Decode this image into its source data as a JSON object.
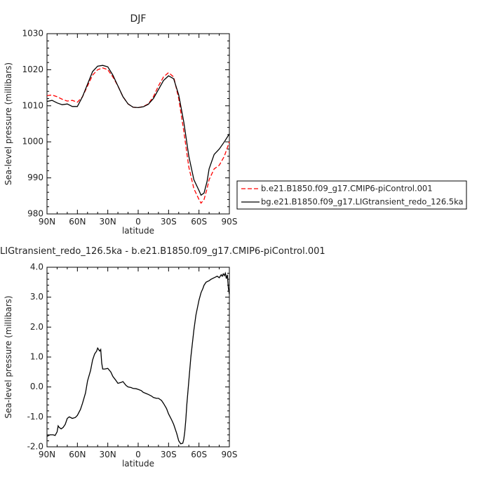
{
  "chart_data": [
    {
      "type": "line",
      "title": "DJF",
      "xlabel": "latitude",
      "ylabel": "Sea-level pressure (millibars)",
      "xlim": [
        90,
        -90
      ],
      "ylim": [
        980,
        1030
      ],
      "x_tick_values": [
        90,
        60,
        30,
        0,
        -30,
        -60,
        -90
      ],
      "x_tick_labels": [
        "90N",
        "60N",
        "30N",
        "0",
        "30S",
        "60S",
        "90S"
      ],
      "y_tick_values": [
        980,
        990,
        1000,
        1010,
        1020,
        1030
      ],
      "y_tick_labels": [
        "980",
        "990",
        "1000",
        "1010",
        "1020",
        "1030"
      ],
      "legend_placement": "right, outside plot",
      "series": [
        {
          "name": "b.e21.B1850.f09_g17.CMIP6-piControl.001",
          "color": "#ff0000",
          "dash": "dashed",
          "x": [
            90,
            85,
            80,
            75,
            70,
            65,
            60,
            55,
            50,
            45,
            40,
            35,
            30,
            25,
            20,
            15,
            10,
            5,
            0,
            -5,
            -10,
            -15,
            -20,
            -25,
            -30,
            -35,
            -40,
            -45,
            -50,
            -55,
            -60,
            -62,
            -65,
            -68,
            -70,
            -75,
            -80,
            -85,
            -90
          ],
          "y": [
            1012.8,
            1013.0,
            1012.5,
            1011.8,
            1011.3,
            1011.5,
            1011.0,
            1012.5,
            1015.5,
            1018.5,
            1020.0,
            1020.5,
            1020.0,
            1018.0,
            1015.5,
            1012.5,
            1010.5,
            1009.6,
            1009.5,
            1009.8,
            1010.5,
            1012.5,
            1015.5,
            1018.0,
            1019.2,
            1018.0,
            1012.0,
            1003.0,
            993.0,
            987.0,
            984.0,
            983.0,
            984.0,
            987.0,
            989.5,
            992.5,
            993.5,
            996.0,
            1000.0
          ]
        },
        {
          "name": "bg.e21.B1850.f09_g17.LIGtransient_redo_126.5ka",
          "color": "#000000",
          "dash": "solid",
          "x": [
            90,
            85,
            80,
            75,
            70,
            65,
            60,
            55,
            50,
            45,
            40,
            35,
            30,
            25,
            20,
            15,
            10,
            5,
            0,
            -5,
            -10,
            -15,
            -20,
            -25,
            -30,
            -35,
            -40,
            -45,
            -50,
            -55,
            -60,
            -62,
            -65,
            -68,
            -70,
            -75,
            -80,
            -85,
            -90
          ],
          "y": [
            1011.2,
            1011.5,
            1010.8,
            1010.3,
            1010.5,
            1009.8,
            1009.8,
            1012.5,
            1016.0,
            1019.5,
            1021.0,
            1021.2,
            1020.8,
            1018.5,
            1015.5,
            1012.5,
            1010.5,
            1009.6,
            1009.5,
            1009.7,
            1010.4,
            1012.0,
            1014.5,
            1017.0,
            1018.3,
            1017.5,
            1013.0,
            1005.5,
            996.0,
            989.5,
            986.5,
            985.2,
            985.8,
            989.0,
            992.5,
            996.5,
            998.0,
            1000.0,
            1002.2
          ]
        }
      ]
    },
    {
      "type": "line",
      "title": "LIGtransient_redo_126.5ka - b.e21.B1850.f09_g17.CMIP6-piControl.001",
      "xlabel": "latitude",
      "ylabel": "Sea-level pressure (millibars)",
      "xlim": [
        90,
        -90
      ],
      "ylim": [
        -2.0,
        4.0
      ],
      "x_tick_values": [
        90,
        60,
        30,
        0,
        -30,
        -60,
        -90
      ],
      "x_tick_labels": [
        "90N",
        "60N",
        "30N",
        "0",
        "30S",
        "60S",
        "90S"
      ],
      "y_tick_values": [
        -2,
        -1,
        0,
        1,
        2,
        3,
        4
      ],
      "y_tick_labels": [
        "-2.0",
        "-1.0",
        "0.0",
        "1.0",
        "2.0",
        "3.0",
        "4.0"
      ],
      "series": [
        {
          "color": "#000000",
          "dash": "solid",
          "x": [
            90,
            87,
            84,
            82,
            80,
            79,
            78,
            76,
            74,
            72,
            70,
            68,
            65,
            62,
            60,
            57,
            55,
            52,
            50,
            47,
            45,
            43,
            42,
            41,
            40,
            38,
            37,
            36,
            35,
            33,
            30,
            27,
            25,
            22,
            20,
            17,
            15,
            12,
            10,
            7,
            5,
            2,
            0,
            -3,
            -5,
            -8,
            -10,
            -13,
            -15,
            -18,
            -20,
            -23,
            -25,
            -28,
            -30,
            -33,
            -35,
            -38,
            -40,
            -42,
            -44,
            -45,
            -46,
            -47,
            -48,
            -50,
            -52,
            -55,
            -57,
            -60,
            -62,
            -64,
            -65,
            -67,
            -70,
            -72,
            -75,
            -78,
            -80,
            -82,
            -83,
            -84,
            -85,
            -86,
            -87,
            -88,
            -89,
            -90
          ],
          "y": [
            -1.65,
            -1.6,
            -1.6,
            -1.62,
            -1.5,
            -1.3,
            -1.35,
            -1.4,
            -1.35,
            -1.25,
            -1.05,
            -1.0,
            -1.05,
            -1.02,
            -0.95,
            -0.75,
            -0.55,
            -0.2,
            0.2,
            0.55,
            0.9,
            1.1,
            1.15,
            1.2,
            1.3,
            1.2,
            1.25,
            0.8,
            0.6,
            0.6,
            0.62,
            0.5,
            0.35,
            0.22,
            0.12,
            0.15,
            0.18,
            0.05,
            0.0,
            -0.02,
            -0.05,
            -0.06,
            -0.08,
            -0.12,
            -0.18,
            -0.22,
            -0.25,
            -0.3,
            -0.35,
            -0.38,
            -0.38,
            -0.45,
            -0.55,
            -0.72,
            -0.9,
            -1.1,
            -1.25,
            -1.55,
            -1.8,
            -1.9,
            -1.88,
            -1.75,
            -1.5,
            -1.1,
            -0.6,
            0.2,
            1.0,
            1.9,
            2.4,
            2.9,
            3.15,
            3.3,
            3.4,
            3.5,
            3.55,
            3.6,
            3.65,
            3.7,
            3.65,
            3.75,
            3.7,
            3.78,
            3.72,
            3.8,
            3.62,
            3.75,
            3.3,
            3.1
          ]
        }
      ]
    }
  ]
}
